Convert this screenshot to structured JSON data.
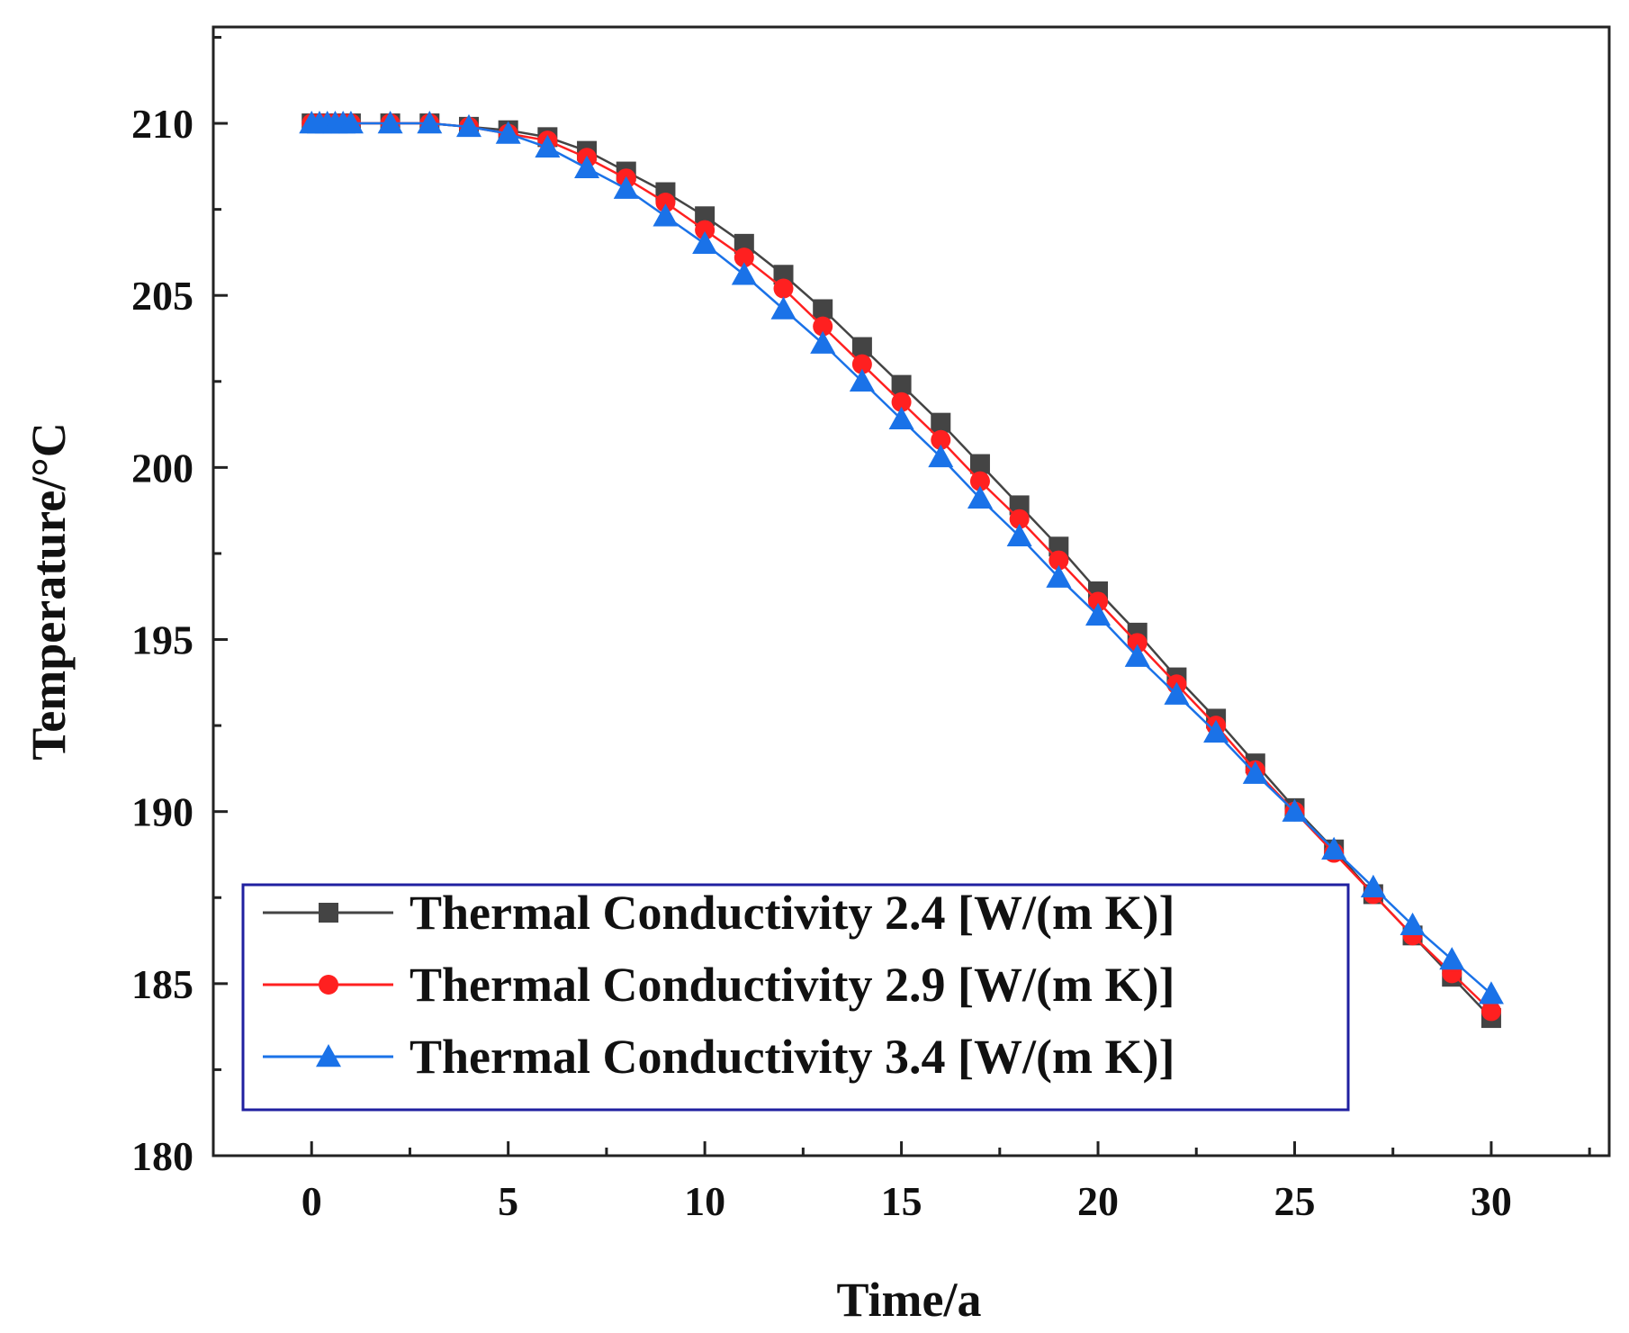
{
  "chart_data": {
    "type": "line",
    "title": "",
    "xlabel": "Time/a",
    "ylabel": "Temperature/°C",
    "xlim": [
      -2.5,
      33
    ],
    "ylim": [
      180,
      212.8
    ],
    "xticks": [
      0,
      5,
      10,
      15,
      20,
      25,
      30
    ],
    "yticks": [
      180,
      185,
      190,
      195,
      200,
      205,
      210
    ],
    "xtick_labels": [
      "0",
      "5",
      "10",
      "15",
      "20",
      "25",
      "30"
    ],
    "ytick_labels": [
      "180",
      "185",
      "190",
      "195",
      "200",
      "205",
      "210"
    ],
    "grid": false,
    "legend_position": "bottom-left",
    "x": [
      0,
      0.2,
      0.4,
      0.6,
      0.8,
      1,
      2,
      3,
      4,
      5,
      6,
      7,
      8,
      9,
      10,
      11,
      12,
      13,
      14,
      15,
      16,
      17,
      18,
      19,
      20,
      21,
      22,
      23,
      24,
      25,
      26,
      27,
      28,
      29,
      30
    ],
    "series": [
      {
        "name": "Thermal Conductivity 2.4 [W/(m K)]",
        "color": "#444444",
        "marker": "square",
        "values": [
          210,
          210,
          210,
          210,
          210,
          210,
          210,
          210,
          209.9,
          209.8,
          209.6,
          209.2,
          208.6,
          208.0,
          207.3,
          206.5,
          205.6,
          204.6,
          203.5,
          202.4,
          201.3,
          200.1,
          198.9,
          197.7,
          196.4,
          195.2,
          193.9,
          192.7,
          191.4,
          190.1,
          188.9,
          187.6,
          186.4,
          185.2,
          184.0
        ]
      },
      {
        "name": "Thermal Conductivity 2.9 [W/(m K)]",
        "color": "#ff2020",
        "marker": "circle",
        "values": [
          210,
          210,
          210,
          210,
          210,
          210,
          210,
          210,
          209.9,
          209.7,
          209.5,
          209.0,
          208.4,
          207.7,
          206.9,
          206.1,
          205.2,
          204.1,
          203.0,
          201.9,
          200.8,
          199.6,
          198.5,
          197.3,
          196.1,
          194.9,
          193.7,
          192.5,
          191.2,
          190.0,
          188.8,
          187.6,
          186.4,
          185.3,
          184.2
        ]
      },
      {
        "name": "Thermal Conductivity 3.4 [W/(m K)]",
        "color": "#1a72e8",
        "marker": "triangle",
        "values": [
          210,
          210,
          210,
          210,
          210,
          210,
          210,
          210,
          209.9,
          209.7,
          209.3,
          208.7,
          208.1,
          207.3,
          206.5,
          205.6,
          204.6,
          203.6,
          202.5,
          201.4,
          200.3,
          199.1,
          198.0,
          196.8,
          195.7,
          194.5,
          193.4,
          192.3,
          191.1,
          190.0,
          188.9,
          187.8,
          186.7,
          185.7,
          184.7
        ]
      }
    ],
    "legend_border_color": "#2020a0"
  }
}
